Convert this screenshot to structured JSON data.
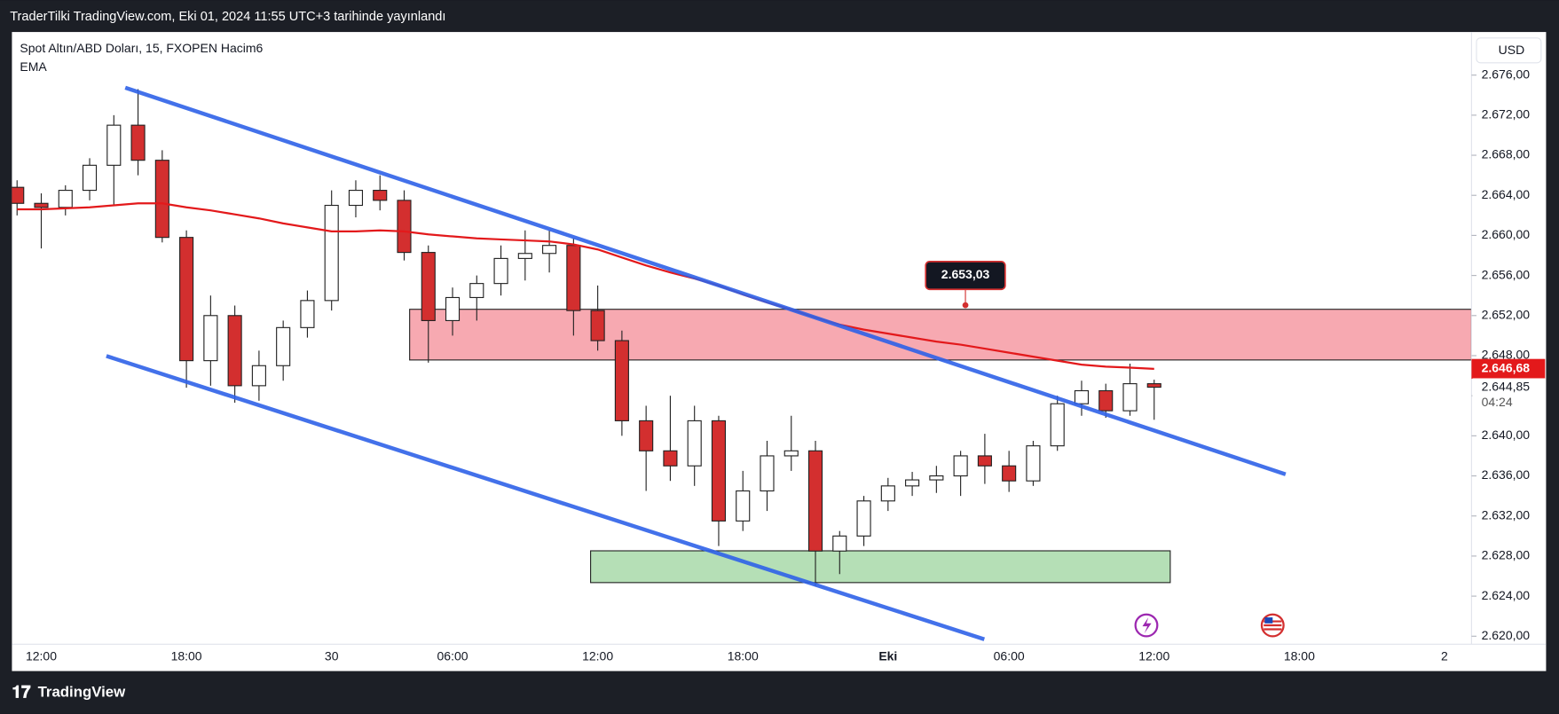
{
  "header": {
    "published": "TraderTilki TradingView.com, Eki 01, 2024 11:55 UTC+3 tarihinde yayınlandı"
  },
  "chart_data": {
    "type": "candlestick",
    "title": "Spot Altın/ABD Doları, 15, FXOPEN  Hacim6",
    "currency": "USD",
    "categories": [
      null,
      "12:00",
      null,
      null,
      null,
      null,
      null,
      "18:00",
      null,
      null,
      null,
      null,
      null,
      "30",
      null,
      null,
      null,
      null,
      "06:00",
      null,
      null,
      null,
      null,
      null,
      "12:00",
      null,
      null,
      null,
      null,
      null,
      "18:00",
      null,
      null,
      null,
      null,
      null,
      "Eki",
      null,
      null,
      null,
      null,
      "06:00",
      null,
      null,
      null,
      null,
      null,
      "12:00",
      null,
      null,
      null,
      null,
      null,
      "18:00",
      null,
      null,
      null,
      null,
      null,
      "2"
    ],
    "open": [
      2664.8,
      2663.2,
      2662.8,
      2664.5,
      2667,
      2671,
      2667.5,
      2659.8,
      2647.5,
      2652,
      2645,
      2647,
      2650.8,
      2653.5,
      2663,
      2664.5,
      2663.5,
      2658.3,
      2651.5,
      2653.8,
      2655.2,
      2657.7,
      2658.2,
      2659,
      2652.5,
      2649.5,
      2641.5,
      2638.5,
      2637,
      2641.5,
      2631.5,
      2634.5,
      2638,
      2638.5,
      2628.5,
      2630,
      2633.5,
      2635,
      2635.6,
      2636,
      2638,
      2637,
      2635.5,
      2639,
      2643.2,
      2644.5,
      2642.5,
      2645.2,
      null,
      null,
      null,
      null,
      null,
      null,
      null,
      null,
      null,
      null,
      null,
      null
    ],
    "high": [
      2665.5,
      2664.2,
      2665,
      2667.7,
      2672,
      2674.6,
      2668.5,
      2660.5,
      2654,
      2653,
      2648.5,
      2651.5,
      2654.5,
      2664.5,
      2665.5,
      2666,
      2664.5,
      2659,
      2654.8,
      2656,
      2659,
      2660.5,
      2660.5,
      2659.7,
      2655,
      2650.5,
      2643,
      2644,
      2643,
      2642,
      2636.5,
      2639.5,
      2642,
      2639.5,
      2630.5,
      2634,
      2635.8,
      2636.4,
      2637,
      2638.5,
      2640.2,
      2638.5,
      2639.5,
      2644,
      2645.5,
      2645.2,
      2647.2,
      2645.6,
      null,
      null,
      null,
      null,
      null,
      null,
      null,
      null,
      null,
      null,
      null,
      null
    ],
    "low": [
      2662,
      2658.7,
      2662,
      2663.5,
      2663,
      2666,
      2659.3,
      2644.8,
      2645,
      2643.3,
      2643.5,
      2645.5,
      2649.8,
      2652.5,
      2661.8,
      2662.5,
      2657.5,
      2647.3,
      2650,
      2651.5,
      2654,
      2655.5,
      2656.3,
      2650,
      2648.5,
      2640,
      2634.5,
      2635.5,
      2635,
      2629,
      2630.5,
      2632.5,
      2636.5,
      2625,
      2626.2,
      2629,
      2632.5,
      2634,
      2634.3,
      2634,
      2635.2,
      2634.4,
      2635,
      2638.5,
      2642,
      2641.8,
      2642,
      2641.6,
      null,
      null,
      null,
      null,
      null,
      null,
      null,
      null,
      null,
      null,
      null,
      null
    ],
    "close": [
      2663.2,
      2662.8,
      2664.5,
      2667,
      2671,
      2667.5,
      2659.8,
      2647.5,
      2652,
      2645,
      2647,
      2650.8,
      2653.5,
      2663,
      2664.5,
      2663.5,
      2658.3,
      2651.5,
      2653.8,
      2655.2,
      2657.7,
      2658.2,
      2659,
      2652.5,
      2649.5,
      2641.5,
      2638.5,
      2637,
      2641.5,
      2631.5,
      2634.5,
      2638,
      2638.5,
      2628.5,
      2630,
      2633.5,
      2635,
      2635.6,
      2636,
      2638,
      2637,
      2635.5,
      2639,
      2643.2,
      2644.5,
      2642.5,
      2645.2,
      2644.85,
      null,
      null,
      null,
      null,
      null,
      null,
      null,
      null,
      null,
      null,
      null,
      null
    ],
    "up_color": "#ffffff",
    "down_color": "#d32f2f",
    "series": [
      {
        "name": "EMA",
        "color": "#e3191b",
        "values": [
          2662.6,
          2662.6,
          2662.7,
          2662.8,
          2663,
          2663.2,
          2663.2,
          2662.8,
          2662.5,
          2662.1,
          2661.7,
          2661.2,
          2660.8,
          2660.4,
          2660.4,
          2660.5,
          2660.4,
          2660.1,
          2659.9,
          2659.7,
          2659.6,
          2659.5,
          2659.4,
          2659.1,
          2658.6,
          2657.8,
          2657,
          2656.3,
          2655.7,
          2655,
          2654.1,
          2653.3,
          2652.6,
          2651.8,
          2651.1,
          2650.6,
          2650.2,
          2649.8,
          2649.4,
          2649.1,
          2648.7,
          2648.3,
          2647.9,
          2647.5,
          2647.1,
          2646.9,
          2646.8,
          2646.68,
          null,
          null,
          null,
          null,
          null,
          null,
          null,
          null,
          null,
          null,
          null,
          null
        ]
      }
    ],
    "ylim": [
      2619.2,
      2680.3
    ],
    "yticks": [
      {
        "value": 2620,
        "label": "2.620,00"
      },
      {
        "value": 2624,
        "label": "2.624,00"
      },
      {
        "value": 2628,
        "label": "2.628,00"
      },
      {
        "value": 2632,
        "label": "2.632,00"
      },
      {
        "value": 2636,
        "label": "2.636,00"
      },
      {
        "value": 2640,
        "label": "2.640,00"
      },
      {
        "value": 2644,
        "label": "2.644,00"
      },
      {
        "value": 2648,
        "label": "2.648,00"
      },
      {
        "value": 2652,
        "label": "2.652,00"
      },
      {
        "value": 2656,
        "label": "2.656,00"
      },
      {
        "value": 2660,
        "label": "2.660,00"
      },
      {
        "value": 2664,
        "label": "2.664,00"
      },
      {
        "value": 2668,
        "label": "2.668,00"
      },
      {
        "value": 2672,
        "label": "2.672,00"
      },
      {
        "value": 2676,
        "label": "2.676,00"
      }
    ],
    "price_labels": [
      {
        "value": 2646.68,
        "label": "2.646,68"
      },
      {
        "value": 2644.85,
        "label": "2.644,85"
      }
    ],
    "countdown": "04:24",
    "callout": {
      "value": 2653.03,
      "label": "2.653,03"
    }
  },
  "footer": {
    "brand": "TradingView"
  }
}
